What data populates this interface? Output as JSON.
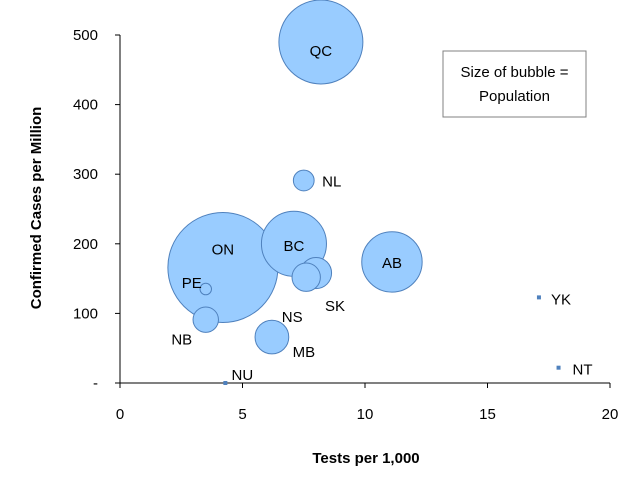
{
  "chart_data": {
    "type": "scatter",
    "subtype": "bubble",
    "xlabel": "Tests per 1,000",
    "ylabel": "Confirmed Cases per Million",
    "xlim": [
      0,
      20
    ],
    "ylim": [
      0,
      500
    ],
    "xticks": [
      "0",
      "5",
      "10",
      "15",
      "20"
    ],
    "yticks": [
      "-",
      "100",
      "200",
      "300",
      "400",
      "500"
    ],
    "grid": false,
    "annotation": [
      "Size of bubble =",
      "Population"
    ],
    "legend": "none",
    "colors": {
      "fill": "#99ccff",
      "stroke": "#4f81bd"
    },
    "points": [
      {
        "label": "QC",
        "x": 8.2,
        "y": 490,
        "size": 8.5
      },
      {
        "label": "NL",
        "x": 7.5,
        "y": 291,
        "size": 0.52
      },
      {
        "label": "ON",
        "x": 4.2,
        "y": 166,
        "size": 14.6
      },
      {
        "label": "BC",
        "x": 7.1,
        "y": 200,
        "size": 5.1
      },
      {
        "label": "AB",
        "x": 11.1,
        "y": 174,
        "size": 4.4
      },
      {
        "label": "SK",
        "x": 8.0,
        "y": 158,
        "size": 1.17
      },
      {
        "label": "NS",
        "x": 7.6,
        "y": 152,
        "size": 0.97
      },
      {
        "label": "PE",
        "x": 3.5,
        "y": 135,
        "size": 0.16
      },
      {
        "label": "NB",
        "x": 3.5,
        "y": 91,
        "size": 0.78
      },
      {
        "label": "MB",
        "x": 6.2,
        "y": 66,
        "size": 1.37
      },
      {
        "label": "NU",
        "x": 4.3,
        "y": 0,
        "size": 0.039
      },
      {
        "label": "YK",
        "x": 17.1,
        "y": 123,
        "size": 0.042
      },
      {
        "label": "NT",
        "x": 17.9,
        "y": 22,
        "size": 0.045
      }
    ]
  }
}
